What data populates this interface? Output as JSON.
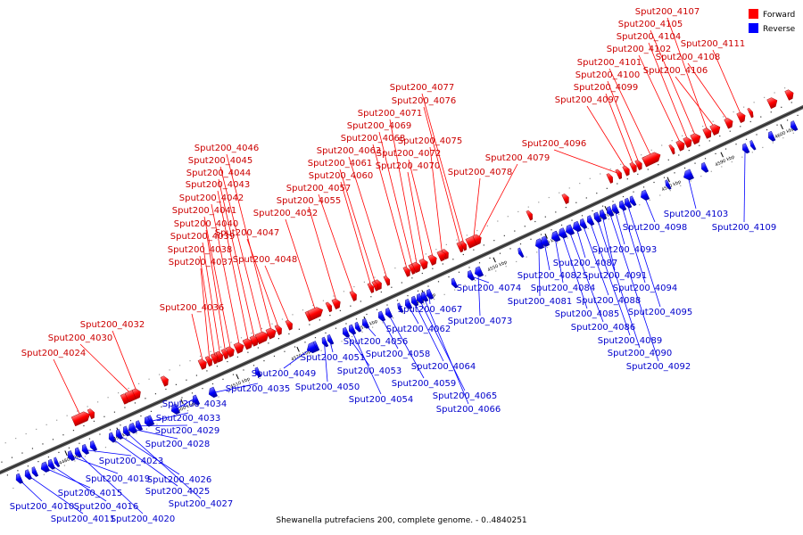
{
  "title": "Shewanella putrefaciens 200, complete genome. - 0..4840251",
  "colors": {
    "forward": "#ff0000",
    "reverse": "#0000ff",
    "backbone": "#555555",
    "backbone_dark": "#222222",
    "tick": "#000000",
    "label_forward": "#cc0000",
    "label_reverse": "#0000cc"
  },
  "legend": {
    "forward_label": "Forward",
    "reverse_label": "Reverse"
  },
  "kbp_ticks": [
    {
      "label": "4480 kbp"
    },
    {
      "label": "4490 kbp"
    },
    {
      "label": "4500 kbp"
    },
    {
      "label": "4510 kbp"
    },
    {
      "label": "4520 kbp"
    },
    {
      "label": "4530 kbp"
    },
    {
      "label": "4540 kbp"
    },
    {
      "label": "4550 kbp"
    },
    {
      "label": "4560 kbp"
    },
    {
      "label": "4570 kbp"
    },
    {
      "label": "4580 kbp"
    },
    {
      "label": "4590 kbp"
    },
    {
      "label": "4600 kbp"
    }
  ],
  "forward_genes": [
    {
      "name": "Sput200_4024"
    },
    {
      "name": "Sput200_4030"
    },
    {
      "name": "Sput200_4032"
    },
    {
      "name": "Sput200_4036"
    },
    {
      "name": "Sput200_4037"
    },
    {
      "name": "Sput200_4038"
    },
    {
      "name": "Sput200_4039"
    },
    {
      "name": "Sput200_4040"
    },
    {
      "name": "Sput200_4041"
    },
    {
      "name": "Sput200_4042"
    },
    {
      "name": "Sput200_4043"
    },
    {
      "name": "Sput200_4044"
    },
    {
      "name": "Sput200_4045"
    },
    {
      "name": "Sput200_4046"
    },
    {
      "name": "Sput200_4047"
    },
    {
      "name": "Sput200_4048"
    },
    {
      "name": "Sput200_4052"
    },
    {
      "name": "Sput200_4055"
    },
    {
      "name": "Sput200_4057"
    },
    {
      "name": "Sput200_4060"
    },
    {
      "name": "Sput200_4061"
    },
    {
      "name": "Sput200_4063"
    },
    {
      "name": "Sput200_4068"
    },
    {
      "name": "Sput200_4069"
    },
    {
      "name": "Sput200_4071"
    },
    {
      "name": "Sput200_4070"
    },
    {
      "name": "Sput200_4072"
    },
    {
      "name": "Sput200_4075"
    },
    {
      "name": "Sput200_4076"
    },
    {
      "name": "Sput200_4077"
    },
    {
      "name": "Sput200_4078"
    },
    {
      "name": "Sput200_4079"
    },
    {
      "name": "Sput200_4096"
    },
    {
      "name": "Sput200_4097"
    },
    {
      "name": "Sput200_4099"
    },
    {
      "name": "Sput200_4100"
    },
    {
      "name": "Sput200_4101"
    },
    {
      "name": "Sput200_4102"
    },
    {
      "name": "Sput200_4104"
    },
    {
      "name": "Sput200_4105"
    },
    {
      "name": "Sput200_4107"
    },
    {
      "name": "Sput200_4106"
    },
    {
      "name": "Sput200_4108"
    },
    {
      "name": "Sput200_4111"
    }
  ],
  "reverse_genes": [
    {
      "name": "Sput200_4010"
    },
    {
      "name": "Sput200_4011"
    },
    {
      "name": "Sput200_4015"
    },
    {
      "name": "Sput200_4016"
    },
    {
      "name": "Sput200_4019"
    },
    {
      "name": "Sput200_4020"
    },
    {
      "name": "Sput200_4023"
    },
    {
      "name": "Sput200_4025"
    },
    {
      "name": "Sput200_4026"
    },
    {
      "name": "Sput200_4027"
    },
    {
      "name": "Sput200_4028"
    },
    {
      "name": "Sput200_4029"
    },
    {
      "name": "Sput200_4033"
    },
    {
      "name": "Sput200_4034"
    },
    {
      "name": "Sput200_4035"
    },
    {
      "name": "Sput200_4049"
    },
    {
      "name": "Sput200_4050"
    },
    {
      "name": "Sput200_4051"
    },
    {
      "name": "Sput200_4053"
    },
    {
      "name": "Sput200_4054"
    },
    {
      "name": "Sput200_4056"
    },
    {
      "name": "Sput200_4058"
    },
    {
      "name": "Sput200_4059"
    },
    {
      "name": "Sput200_4062"
    },
    {
      "name": "Sput200_4064"
    },
    {
      "name": "Sput200_4065"
    },
    {
      "name": "Sput200_4066"
    },
    {
      "name": "Sput200_4067"
    },
    {
      "name": "Sput200_4073"
    },
    {
      "name": "Sput200_4074"
    },
    {
      "name": "Sput200_4081"
    },
    {
      "name": "Sput200_4082"
    },
    {
      "name": "Sput200_4084"
    },
    {
      "name": "Sput200_4085"
    },
    {
      "name": "Sput200_4086"
    },
    {
      "name": "Sput200_4087"
    },
    {
      "name": "Sput200_4088"
    },
    {
      "name": "Sput200_4089"
    },
    {
      "name": "Sput200_4090"
    },
    {
      "name": "Sput200_4091"
    },
    {
      "name": "Sput200_4092"
    },
    {
      "name": "Sput200_4093"
    },
    {
      "name": "Sput200_4094"
    },
    {
      "name": "Sput200_4095"
    },
    {
      "name": "Sput200_4098"
    },
    {
      "name": "Sput200_4103"
    },
    {
      "name": "Sput200_4109"
    }
  ]
}
